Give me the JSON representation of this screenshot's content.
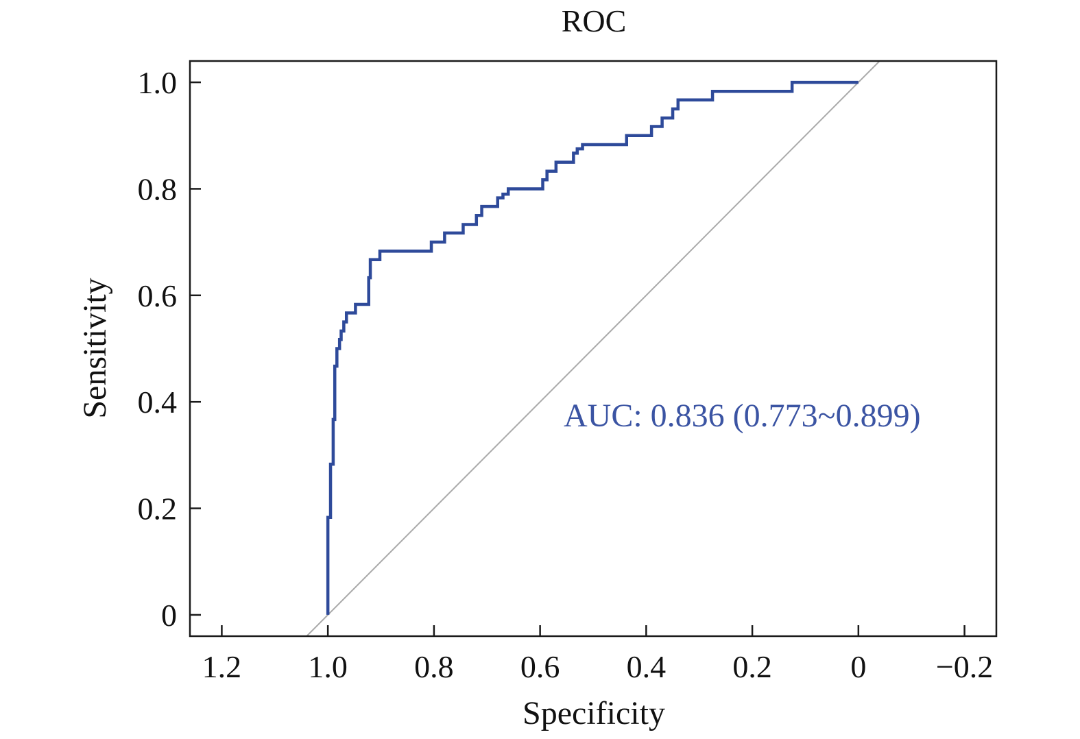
{
  "chart_data": {
    "type": "line",
    "title": "ROC",
    "xlabel": "Specificity",
    "ylabel": "Sensitivity",
    "xlim": [
      1.26,
      -0.26
    ],
    "ylim": [
      -0.04,
      1.04
    ],
    "x_reversed": true,
    "xticks": [
      1.2,
      1.0,
      0.8,
      0.6,
      0.4,
      0.2,
      0,
      -0.2
    ],
    "xtick_labels": [
      "1.2",
      "1.0",
      "0.8",
      "0.6",
      "0.4",
      "0.2",
      "0",
      "−0.2"
    ],
    "yticks": [
      0,
      0.2,
      0.4,
      0.6,
      0.8,
      1.0
    ],
    "ytick_labels": [
      "0",
      "0.2",
      "0.4",
      "0.6",
      "0.8",
      "1.0"
    ],
    "grid": false,
    "annotation": "AUC: 0.836 (0.773~0.899)",
    "colors": {
      "roc": "#2e4a9a",
      "reference": "#aaaaaa",
      "annotation": "#3b54a3"
    },
    "reference_line": {
      "x": [
        1.04,
        -0.04
      ],
      "y": [
        -0.04,
        1.04
      ]
    },
    "series": [
      {
        "x": [
          1.0,
          1.0,
          0.995,
          0.995,
          0.99,
          0.99,
          0.987,
          0.987,
          0.983,
          0.983,
          0.978,
          0.978,
          0.975,
          0.975,
          0.97,
          0.97,
          0.965,
          0.965,
          0.958,
          0.958,
          0.952,
          0.952,
          0.948,
          0.948,
          0.923,
          0.923,
          0.92,
          0.92,
          0.902,
          0.902,
          0.897,
          0.897,
          0.805,
          0.805,
          0.78,
          0.78,
          0.745,
          0.745,
          0.72,
          0.72,
          0.71,
          0.71,
          0.68,
          0.68,
          0.67,
          0.67,
          0.66,
          0.66,
          0.595,
          0.595,
          0.587,
          0.587,
          0.57,
          0.57,
          0.537,
          0.537,
          0.53,
          0.53,
          0.52,
          0.52,
          0.437,
          0.437,
          0.39,
          0.39,
          0.37,
          0.37,
          0.35,
          0.35,
          0.34,
          0.34,
          0.275,
          0.275,
          0.125,
          0.125,
          0.0
        ],
        "y": [
          0.0,
          0.183,
          0.183,
          0.283,
          0.283,
          0.367,
          0.367,
          0.467,
          0.467,
          0.5,
          0.5,
          0.517,
          0.517,
          0.533,
          0.533,
          0.55,
          0.55,
          0.567,
          0.567,
          0.567,
          0.567,
          0.567,
          0.567,
          0.583,
          0.583,
          0.633,
          0.633,
          0.667,
          0.667,
          0.683,
          0.683,
          0.683,
          0.683,
          0.7,
          0.7,
          0.717,
          0.717,
          0.733,
          0.733,
          0.75,
          0.75,
          0.767,
          0.767,
          0.783,
          0.783,
          0.79,
          0.79,
          0.8,
          0.8,
          0.817,
          0.817,
          0.833,
          0.833,
          0.85,
          0.85,
          0.867,
          0.867,
          0.875,
          0.875,
          0.883,
          0.883,
          0.9,
          0.9,
          0.917,
          0.917,
          0.933,
          0.933,
          0.95,
          0.95,
          0.967,
          0.967,
          0.983,
          0.983,
          1.0,
          1.0
        ]
      }
    ]
  }
}
